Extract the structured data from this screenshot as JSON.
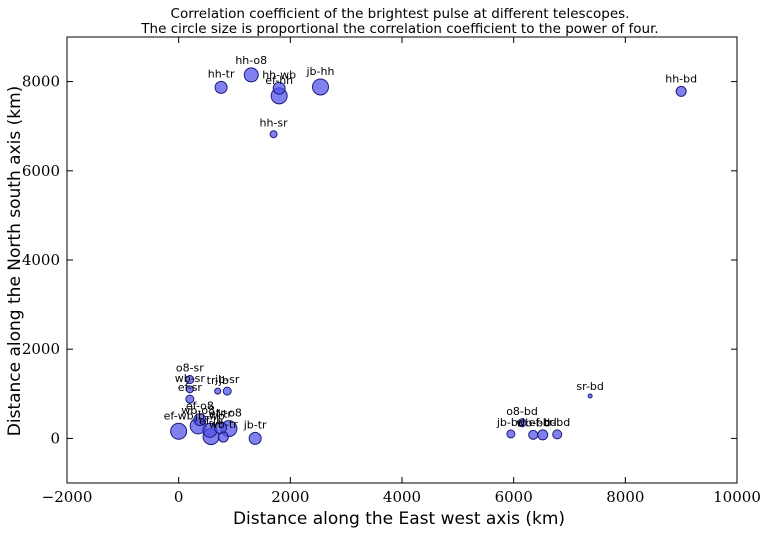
{
  "chart_data": {
    "type": "scatter",
    "title": "Correlation coefficient of the brightest pulse at different telescopes.",
    "subtitle": "The circle size is proportional the correlation coefficient to the power of four.",
    "xlabel": "Distance along the East west axis (km)",
    "ylabel": "Distance along the North south axis (km)",
    "xlim": [
      -2000,
      10000
    ],
    "ylim": [
      -1000,
      9000
    ],
    "xticks": [
      -2000,
      0,
      2000,
      4000,
      6000,
      8000,
      10000
    ],
    "yticks": [
      0,
      2000,
      4000,
      6000,
      8000
    ],
    "xtick_labels": [
      "−2000",
      "0",
      "2000",
      "4000",
      "6000",
      "8000",
      "10000"
    ],
    "ytick_labels": [
      "0",
      "2000",
      "4000",
      "6000",
      "8000"
    ],
    "grid": false,
    "marker_color": "#4f4fe8",
    "points": [
      {
        "label": "hh-tr",
        "x": 760,
        "y": 7870,
        "r": 6
      },
      {
        "label": "hh-o8",
        "x": 1300,
        "y": 8150,
        "r": 7
      },
      {
        "label": "hh-wb",
        "x": 1800,
        "y": 7850,
        "r": 6
      },
      {
        "label": "ef-hh",
        "x": 1800,
        "y": 7680,
        "r": 8
      },
      {
        "label": "jb-hh",
        "x": 2540,
        "y": 7880,
        "r": 8
      },
      {
        "label": "hh-sr",
        "x": 1700,
        "y": 6820,
        "r": 3.5
      },
      {
        "label": "hh-bd",
        "x": 9000,
        "y": 7780,
        "r": 5
      },
      {
        "label": "o8-sr",
        "x": 200,
        "y": 1320,
        "r": 4
      },
      {
        "label": "wb-sr",
        "x": 200,
        "y": 1100,
        "r": 3.5
      },
      {
        "label": "tr-jb",
        "x": 700,
        "y": 1060,
        "r": 3
      },
      {
        "label": "jb-sr",
        "x": 870,
        "y": 1060,
        "r": 4
      },
      {
        "label": "ef-sr",
        "x": 200,
        "y": 880,
        "r": 4
      },
      {
        "label": "ef-o8",
        "x": 380,
        "y": 420,
        "r": 6
      },
      {
        "label": "ef-wb",
        "x": 0,
        "y": 160,
        "r": 8
      },
      {
        "label": "wb-o8",
        "x": 350,
        "y": 280,
        "r": 8
      },
      {
        "label": "ef-tr",
        "x": 750,
        "y": 240,
        "r": 6
      },
      {
        "label": "tr-o8",
        "x": 900,
        "y": 220,
        "r": 8
      },
      {
        "label": "wb-tr",
        "x": 800,
        "y": 30,
        "r": 5
      },
      {
        "label": "ef-jb",
        "x": 580,
        "y": 40,
        "r": 8
      },
      {
        "label": "jb-wb",
        "x": 560,
        "y": 180,
        "r": 7
      },
      {
        "label": "jb-tr",
        "x": 1370,
        "y": 0,
        "r": 6
      },
      {
        "label": "jb-bd",
        "x": 5950,
        "y": 100,
        "r": 4
      },
      {
        "label": "o8-bd",
        "x": 6150,
        "y": 350,
        "r": 4
      },
      {
        "label": "wb-bd",
        "x": 6350,
        "y": 80,
        "r": 4.5
      },
      {
        "label": "ef-bd",
        "x": 6520,
        "y": 80,
        "r": 5
      },
      {
        "label": "tr-bd",
        "x": 6780,
        "y": 90,
        "r": 4.5
      },
      {
        "label": "sr-bd",
        "x": 7370,
        "y": 950,
        "r": 2
      }
    ]
  }
}
